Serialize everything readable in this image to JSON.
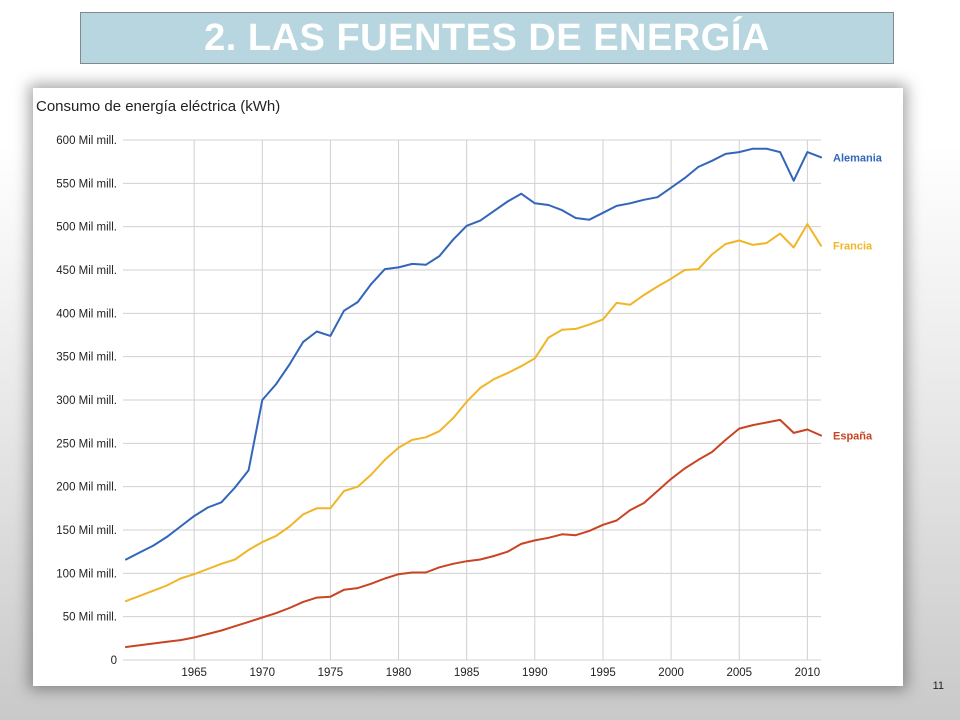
{
  "slide": {
    "title": "2. LAS FUENTES DE ENERGÍA",
    "page_number": "11"
  },
  "chart_data": {
    "type": "line",
    "title": "Consumo de energía eléctrica (kWh)",
    "xlabel": "",
    "ylabel": "",
    "x": [
      1960,
      1961,
      1962,
      1963,
      1964,
      1965,
      1966,
      1967,
      1968,
      1969,
      1970,
      1971,
      1972,
      1973,
      1974,
      1975,
      1976,
      1977,
      1978,
      1979,
      1980,
      1981,
      1982,
      1983,
      1984,
      1985,
      1986,
      1987,
      1988,
      1989,
      1990,
      1991,
      1992,
      1993,
      1994,
      1995,
      1996,
      1997,
      1998,
      1999,
      2000,
      2001,
      2002,
      2003,
      2004,
      2005,
      2006,
      2007,
      2008,
      2009,
      2010,
      2011
    ],
    "xlim": [
      1960,
      2011
    ],
    "x_ticks": [
      1965,
      1970,
      1975,
      1980,
      1985,
      1990,
      1995,
      2000,
      2005,
      2010
    ],
    "ylim": [
      0,
      600
    ],
    "y_ticks": [
      0,
      50,
      100,
      150,
      200,
      250,
      300,
      350,
      400,
      450,
      500,
      550,
      600
    ],
    "y_tick_labels": [
      "0",
      "50 Mil mill.",
      "100 Mil mill.",
      "150 Mil mill.",
      "200 Mil mill.",
      "250 Mil mill.",
      "300 Mil mill.",
      "350 Mil mill.",
      "400 Mil mill.",
      "450 Mil mill.",
      "500 Mil mill.",
      "550 Mil mill.",
      "600 Mil mill."
    ],
    "grid": true,
    "legend": "inline-right",
    "series": [
      {
        "name": "Alemania",
        "color": "#3366bb",
        "values": [
          116,
          124,
          132,
          142,
          154,
          166,
          176,
          182,
          199,
          219,
          300,
          318,
          341,
          367,
          379,
          374,
          403,
          413,
          434,
          451,
          453,
          457,
          456,
          466,
          485,
          501,
          507,
          518,
          529,
          538,
          527,
          525,
          519,
          510,
          508,
          516,
          524,
          527,
          531,
          534,
          545,
          556,
          569,
          576,
          584,
          586,
          590,
          590,
          586,
          553,
          586,
          580
        ]
      },
      {
        "name": "Francia",
        "color": "#f0b628",
        "values": [
          68,
          74,
          80,
          86,
          94,
          99,
          105,
          111,
          116,
          127,
          136,
          143,
          154,
          168,
          175,
          175,
          195,
          200,
          214,
          231,
          245,
          254,
          257,
          264,
          279,
          298,
          314,
          324,
          331,
          339,
          348,
          372,
          381,
          382,
          387,
          393,
          412,
          410,
          421,
          431,
          440,
          450,
          451,
          468,
          480,
          484,
          479,
          481,
          492,
          476,
          503,
          478
        ]
      },
      {
        "name": "España",
        "color": "#c94423",
        "values": [
          15,
          17,
          19,
          21,
          23,
          26,
          30,
          34,
          39,
          44,
          49,
          54,
          60,
          67,
          72,
          73,
          81,
          83,
          88,
          94,
          99,
          101,
          101,
          107,
          111,
          114,
          116,
          120,
          125,
          134,
          138,
          141,
          145,
          144,
          149,
          156,
          161,
          173,
          181,
          195,
          209,
          221,
          231,
          240,
          254,
          267,
          271,
          274,
          277,
          262,
          266,
          259
        ]
      }
    ]
  }
}
